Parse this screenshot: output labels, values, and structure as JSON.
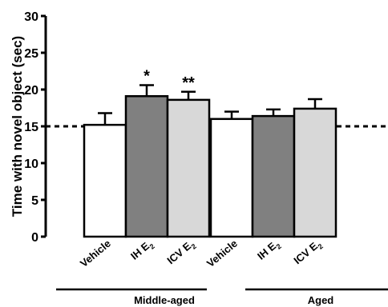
{
  "chart_data": {
    "type": "bar",
    "ylabel": "Time with novel object (sec)",
    "ylim": [
      0,
      30
    ],
    "yticks": [
      "0",
      "5",
      "10",
      "15",
      "20",
      "25",
      "30"
    ],
    "reference_line": 15,
    "groups": [
      {
        "name": "Middle-aged",
        "bars": [
          {
            "label": "Vehicle",
            "label_base": "Vehicle",
            "label_sub": "",
            "value": 15.2,
            "error": 1.6,
            "color": "#ffffff",
            "significance": ""
          },
          {
            "label": "IH E2",
            "label_base": "IH E",
            "label_sub": "2",
            "value": 19.1,
            "error": 1.5,
            "color": "#808080",
            "significance": "*"
          },
          {
            "label": "ICV E2",
            "label_base": "ICV E",
            "label_sub": "2",
            "value": 18.6,
            "error": 1.1,
            "color": "#d8d8d8",
            "significance": "**"
          }
        ]
      },
      {
        "name": "Aged",
        "bars": [
          {
            "label": "Vehicle",
            "label_base": "Vehicle",
            "label_sub": "",
            "value": 16.0,
            "error": 1.0,
            "color": "#ffffff",
            "significance": ""
          },
          {
            "label": "IH E2",
            "label_base": "IH E",
            "label_sub": "2",
            "value": 16.4,
            "error": 0.9,
            "color": "#808080",
            "significance": ""
          },
          {
            "label": "ICV E2",
            "label_base": "ICV E",
            "label_sub": "2",
            "value": 17.4,
            "error": 1.3,
            "color": "#d8d8d8",
            "significance": ""
          }
        ]
      }
    ]
  }
}
